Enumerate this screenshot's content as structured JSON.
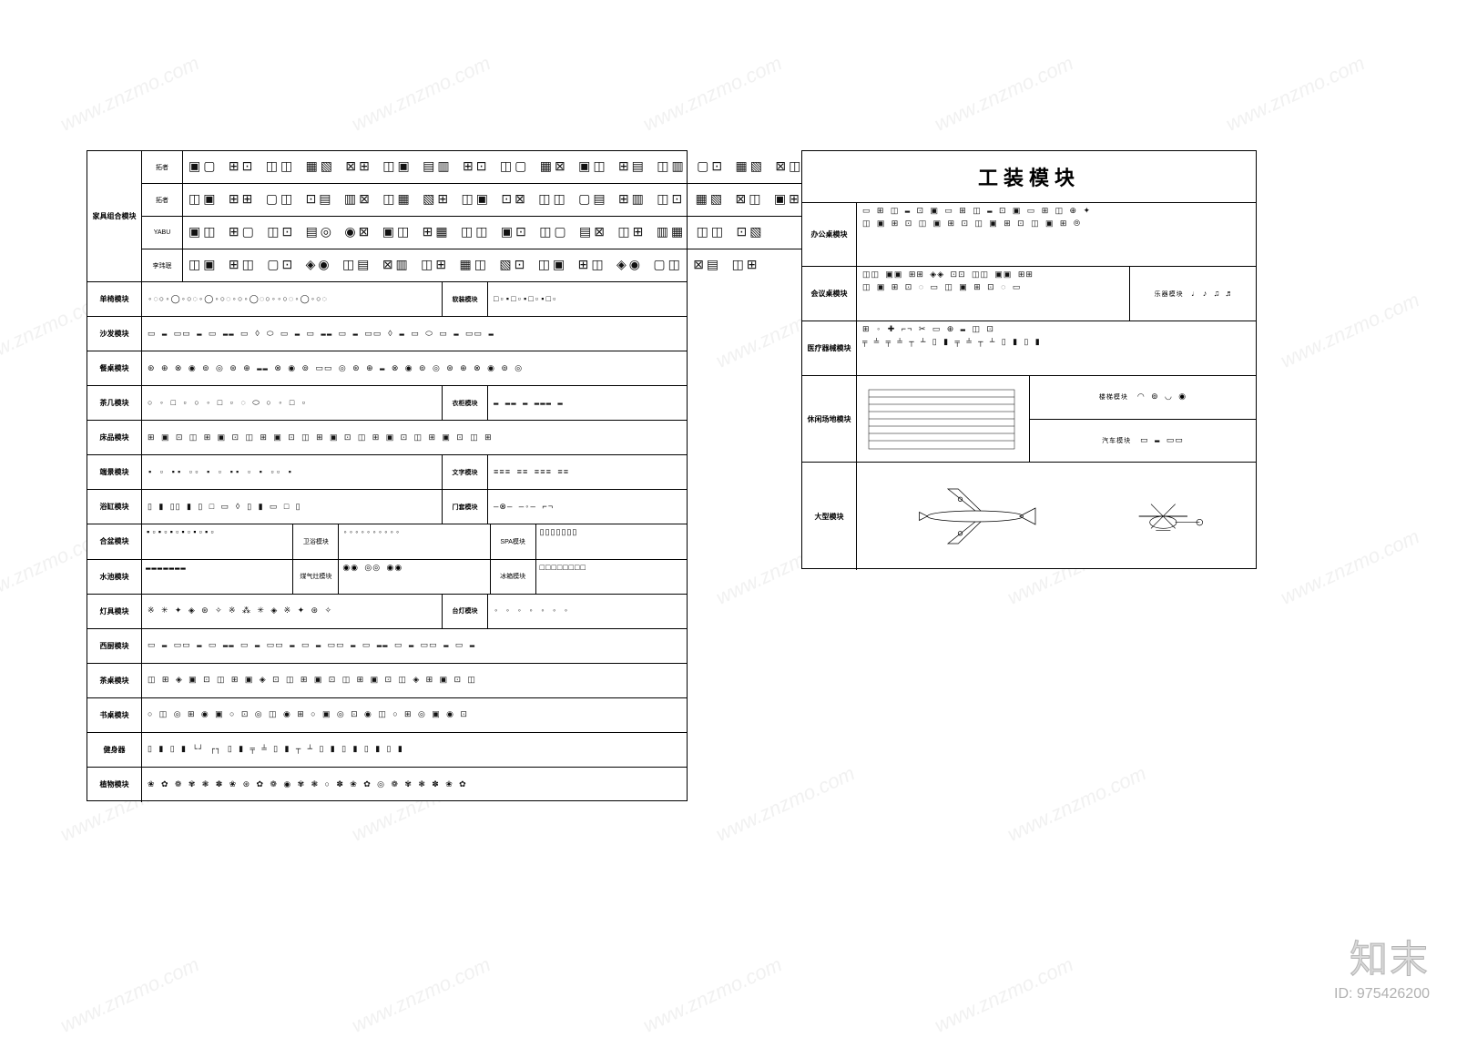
{
  "watermark_text": "www.znzmo.com",
  "brand": {
    "name": "知末",
    "id_label": "ID: 975426200"
  },
  "left_panel": {
    "main_label": "家具组合模块",
    "top_rows": [
      {
        "label": "拓者",
        "glyphs": "▣▢ ⊞⊡ ◫◫ ▦▧ ⊠⊞ ◫▣ ▤▥ ⊞⊡ ◫▢ ▦⊠ ▣◫ ⊞▤ ◫▥ ▢⊡ ▦▧ ⊠◫"
      },
      {
        "label": "拓者",
        "glyphs": "◫▣ ⊞⊞ ▢◫ ⊡▤ ▥⊠ ◫▦ ▧⊞ ◫▣ ⊡⊠ ◫◫ ▢▤ ⊞▥ ◫⊡ ▦▧ ⊠◫ ▣⊞"
      },
      {
        "label": "YABU",
        "glyphs": "▣◫ ⊞▢ ◫⊡ ▤◎ ◉⊠ ▣◫ ⊞▦ ◫◫ ▣⊡ ◫▢ ▤⊠ ◫⊞ ▥▦ ◫◫ ⊡▧"
      },
      {
        "label": "李玮珉",
        "glyphs": "◫▣ ⊞◫ ▢⊡ ◈◉ ◫▤ ⊠▥ ◫⊞ ▦◫ ▧⊡ ◫▣ ⊞◫ ◈◉ ▢◫ ⊠▤ ◫⊞"
      }
    ],
    "mid_rows": [
      {
        "label": "单椅模块",
        "glyphs": "◦◌○◦◯◦○◌◦◯◦○◌◦○◦◯◌○◦◦○◌◦◯◦○◌",
        "extra_label": "软装模块",
        "extra_glyphs": "□▫▪□▫▪□▫▪□▫"
      },
      {
        "label": "沙发模块",
        "glyphs": "▭ ▬ ▭▭ ▬ ▭ ▬▬ ▭ ◊ ⬭ ▭ ▬ ▭ ▬▬ ▭ ▬ ▭▭ ◊ ▬ ▭ ⬭ ▭ ▬ ▭▭ ▬"
      },
      {
        "label": "餐桌模块",
        "glyphs": "⊛ ⊕ ⊗ ◉ ⊚ ◎ ⊛ ⊕ ▬▬ ⊗ ◉ ⊚ ▭▭ ◎ ⊛ ⊕ ▬ ⊗ ◉ ⊚ ◎ ⊛ ⊕ ⊗ ◉ ⊚ ◎"
      },
      {
        "label": "茶几模块",
        "glyphs": "○ ◦ □ ▫ ○ ◦ □ ▫ ◌ ⬭ ○ ◦ □ ▫",
        "extra_label": "衣柜模块",
        "extra_glyphs": "▬ ▬▬ ▬ ▬▬▬ ▬"
      },
      {
        "label": "床品模块",
        "glyphs": "⊞ ▣ ⊡ ◫ ⊞ ▣ ⊡ ◫ ⊞ ▣ ⊡ ◫ ⊞ ▣ ⊡ ◫ ⊞ ▣ ⊡ ◫ ⊞ ▣ ⊡ ◫ ⊞"
      },
      {
        "label": "端景模块",
        "glyphs": "▪ ▫ ▪▪ ▫▫ ▪ ▫ ▪▪ ▫ ▪ ▫▫ ▪",
        "extra_label": "文字模块",
        "extra_glyphs": "≡≡≡ ≡≡ ≡≡≡ ≡≡"
      },
      {
        "label": "浴缸模块",
        "glyphs": "▯ ▮ ▯▯ ▮ ▯ □ ▭ ◊ ▯ ▮ ▭ □ ▯",
        "extra_label": "门套模块",
        "extra_glyphs": "—⊗— —◦— ⌐¬"
      },
      {
        "label": "合盆模块",
        "col1_glyphs": "▪▫▪▫▪▫▪▫▪▫▪▫",
        "col2_label": "卫浴模块",
        "col2_glyphs": "◦◦◦◦◦◦◦◦◦◦",
        "col3_label": "SPA模块",
        "col3_glyphs": "▯▯▯▯▯▯▯"
      },
      {
        "label": "水池模块",
        "col1_glyphs": "▬▬▬▬▬▬▬",
        "col2_label": "煤气灶模块",
        "col2_glyphs": "◉◉ ◎◎ ◉◉",
        "col3_label": "冰箱模块",
        "col3_glyphs": "□□□□□□□□"
      },
      {
        "label": "灯具模块",
        "glyphs": "※ ✳ ✦ ◈ ⊛ ✧ ※ ⁂ ✳ ◈ ※ ✦ ⊛ ✧",
        "extra_label": "台灯模块",
        "extra_glyphs": "◦ ◦ ◦ ◦ ◦ ◦ ◦"
      },
      {
        "label": "西厨模块",
        "glyphs": "▭ ▬ ▭▭ ▬ ▭ ▬▬ ▭ ▬ ▭▭ ▬ ▭ ▬ ▭▭ ▬ ▭ ▬▬ ▭ ▬ ▭▭ ▬ ▭ ▬"
      },
      {
        "label": "茶桌模块",
        "glyphs": "◫ ⊞ ◈ ▣ ⊡ ◫ ⊞ ▣ ◈ ⊡ ◫ ⊞ ▣ ⊡ ◫ ⊞ ▣ ⊡ ◫ ◈ ⊞ ▣ ⊡ ◫"
      },
      {
        "label": "书桌模块",
        "glyphs": "○ ◫ ◎ ⊞ ◉ ▣ ○ ⊡ ◎ ◫ ◉ ⊞ ○ ▣ ◎ ⊡ ◉ ◫ ○ ⊞ ◎ ▣ ◉ ⊡"
      },
      {
        "label": "健身器",
        "glyphs": "▯ ▮ ▯ ▮ └┘ ┌┐ ▯ ▮ ╤ ╧ ▯ ▮ ┬ ┴ ▯ ▮ ▯ ▮ ▯ ▮ ▯ ▮"
      },
      {
        "label": "植物模块",
        "glyphs": "❀ ✿ ❁ ✾ ❃ ✽ ❀ ⊛ ✿ ❁ ◉ ✾ ❃ ○ ✽ ❀ ✿ ◎ ❁ ✾ ❃ ✽ ❀ ✿"
      }
    ]
  },
  "right_panel": {
    "title": "工装模块",
    "rows": [
      {
        "label": "办公桌模块",
        "glyphs_line1": "▭ ⊞ ◫ ▬ ⊡ ▣ ▭ ⊞ ◫ ▬ ⊡ ▣ ▭ ⊞ ◫ ⊕ ✦",
        "glyphs_line2": "◫ ▣ ⊞ ⊡ ◫ ▣ ⊞ ⊡ ◫ ▣ ⊞ ⊡ ◫ ▣ ⊞      ⦾"
      },
      {
        "label": "会议桌模块",
        "glyphs_line1": "◫◫ ▣▣ ⊞⊞ ◈◈ ⊡⊡ ◫◫ ▣▣ ⊞⊞",
        "glyphs_line2": "◫ ▣ ⊞ ⊡ ◌ ▭ ◫ ▣ ⊞ ⊡ ◌ ▭",
        "side_label": "乐器模块",
        "side_glyphs": "♩ ♪ ♫ ♬"
      },
      {
        "label": "医疗器械模块",
        "glyphs_line1": "⊞ ◦ ✚ ⌐¬ ✂ ▭ ⊕ ▬ ◫ ⊡",
        "glyphs_line2": "╤ ╧ ╤ ╧ ┬ ┴ ▯ ▮ ╤ ╧ ┬ ┴ ▯ ▮ ▯ ▮"
      }
    ],
    "leisure_row": {
      "label": "休闲场地模块",
      "side_label_1": "楼梯模块",
      "side_glyphs_1": "◠ ⊚ ◡ ◉",
      "side_label_2": "汽车模块",
      "side_glyphs_2": "▭ ▬ ▭▭"
    },
    "large_row": {
      "label": "大型模块"
    }
  },
  "colors": {
    "border": "#000000",
    "background": "#ffffff",
    "watermark": "rgba(200,200,200,0.25)",
    "brand_stroke": "rgba(100,100,100,0.4)"
  }
}
